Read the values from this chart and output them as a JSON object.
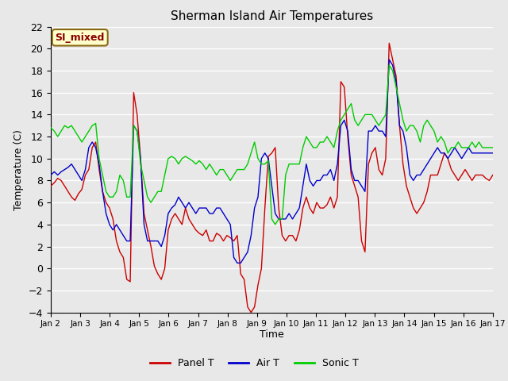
{
  "title": "Sherman Island Air Temperatures",
  "xlabel": "Time",
  "ylabel": "Temperature (C)",
  "ylim": [
    -4,
    22
  ],
  "yticks": [
    -4,
    -2,
    0,
    2,
    4,
    6,
    8,
    10,
    12,
    14,
    16,
    18,
    20,
    22
  ],
  "x_tick_labels": [
    "Jan 2",
    "Jan 3",
    "Jan 4",
    "Jan 5",
    "Jan 6",
    "Jan 7",
    "Jan 8",
    "Jan 9",
    "Jan 10",
    "Jan 11",
    "Jan 12",
    "Jan 13",
    "Jan 14",
    "Jan 15",
    "Jan 16",
    "Jan 17"
  ],
  "watermark_text": "SI_mixed",
  "line_colors": {
    "panel": "#cc0000",
    "air": "#0000cc",
    "sonic": "#00cc00"
  },
  "legend_labels": [
    "Panel T",
    "Air T",
    "Sonic T"
  ],
  "bg_color": "#e8e8e8",
  "panel_t": [
    7.5,
    7.8,
    8.2,
    8.0,
    7.5,
    7.0,
    6.5,
    6.2,
    6.8,
    7.2,
    8.5,
    9.0,
    11.0,
    11.5,
    9.0,
    7.0,
    6.0,
    5.5,
    4.5,
    2.5,
    1.5,
    1.0,
    -1.0,
    -1.2,
    16.0,
    14.0,
    10.0,
    5.0,
    3.5,
    2.0,
    0.2,
    -0.5,
    -1.0,
    0.0,
    3.5,
    4.5,
    5.0,
    4.5,
    4.0,
    5.5,
    4.5,
    4.0,
    3.5,
    3.2,
    3.0,
    3.5,
    2.5,
    2.5,
    3.2,
    3.0,
    2.5,
    3.0,
    2.8,
    2.5,
    3.0,
    -0.5,
    -1.0,
    -3.5,
    -4.0,
    -3.5,
    -1.5,
    0.0,
    5.5,
    10.2,
    10.5,
    11.0,
    5.5,
    3.0,
    2.5,
    3.0,
    3.0,
    2.5,
    3.5,
    5.5,
    6.5,
    5.5,
    5.0,
    6.0,
    5.5,
    5.5,
    5.8,
    6.5,
    5.5,
    6.5,
    17.0,
    16.5,
    12.0,
    8.5,
    7.5,
    6.5,
    2.5,
    1.5,
    9.5,
    10.5,
    11.0,
    9.0,
    8.5,
    10.0,
    20.5,
    19.0,
    17.5,
    13.0,
    9.5,
    7.5,
    6.5,
    5.5,
    5.0,
    5.5,
    6.0,
    7.0,
    8.5,
    8.5,
    8.5,
    9.5,
    10.5,
    10.0,
    9.0,
    8.5,
    8.0,
    8.5,
    9.0,
    8.5,
    8.0,
    8.5,
    8.5,
    8.5,
    8.2,
    8.0,
    8.5
  ],
  "air_t": [
    8.5,
    8.8,
    8.5,
    8.8,
    9.0,
    9.2,
    9.5,
    9.0,
    8.5,
    8.0,
    9.0,
    11.0,
    11.5,
    11.0,
    9.5,
    7.0,
    5.0,
    4.0,
    3.5,
    4.0,
    3.5,
    3.0,
    2.5,
    2.5,
    13.0,
    12.5,
    10.0,
    4.0,
    2.5,
    2.5,
    2.5,
    2.5,
    2.0,
    3.0,
    5.0,
    5.5,
    5.8,
    6.5,
    6.0,
    5.5,
    6.0,
    5.5,
    5.0,
    5.5,
    5.5,
    5.5,
    5.0,
    5.0,
    5.5,
    5.5,
    5.0,
    4.5,
    4.0,
    1.0,
    0.5,
    0.5,
    1.0,
    1.5,
    3.0,
    5.5,
    6.5,
    10.0,
    10.5,
    10.0,
    7.5,
    5.0,
    4.5,
    4.5,
    4.5,
    5.0,
    4.5,
    5.0,
    5.5,
    7.5,
    9.5,
    8.0,
    7.5,
    8.0,
    8.0,
    8.5,
    8.5,
    9.0,
    8.0,
    9.5,
    13.0,
    13.5,
    12.5,
    9.0,
    8.0,
    8.0,
    7.5,
    7.0,
    12.5,
    12.5,
    13.0,
    12.5,
    12.5,
    12.0,
    19.0,
    18.5,
    17.0,
    13.0,
    12.5,
    11.0,
    8.5,
    8.0,
    8.5,
    8.5,
    9.0,
    9.5,
    10.0,
    10.5,
    11.0,
    10.5,
    10.5,
    10.0,
    10.5,
    11.0,
    10.5,
    10.0,
    10.5,
    11.0,
    10.5,
    10.5,
    10.5,
    10.5,
    10.5,
    10.5,
    10.5
  ],
  "sonic_t": [
    12.8,
    12.5,
    12.0,
    12.5,
    13.0,
    12.8,
    13.0,
    12.5,
    12.0,
    11.5,
    12.0,
    12.5,
    13.0,
    13.2,
    10.0,
    8.5,
    7.0,
    6.5,
    6.5,
    7.0,
    8.5,
    8.0,
    6.5,
    6.5,
    13.0,
    12.5,
    9.5,
    8.0,
    6.5,
    6.0,
    6.5,
    7.0,
    7.0,
    8.5,
    10.0,
    10.2,
    10.0,
    9.5,
    10.0,
    10.2,
    10.0,
    9.8,
    9.5,
    9.8,
    9.5,
    9.0,
    9.5,
    9.0,
    8.5,
    9.0,
    9.0,
    8.5,
    8.0,
    8.5,
    9.0,
    9.0,
    9.0,
    9.5,
    10.5,
    11.5,
    10.0,
    9.5,
    9.5,
    9.8,
    4.5,
    4.0,
    4.5,
    4.5,
    8.5,
    9.5,
    9.5,
    9.5,
    9.5,
    11.0,
    12.0,
    11.5,
    11.0,
    11.0,
    11.5,
    11.5,
    12.0,
    11.5,
    11.0,
    12.5,
    13.5,
    14.0,
    14.5,
    15.0,
    13.5,
    13.0,
    13.5,
    14.0,
    14.0,
    14.0,
    13.5,
    13.0,
    13.5,
    14.0,
    18.5,
    18.0,
    16.5,
    15.0,
    13.5,
    12.5,
    13.0,
    13.0,
    12.5,
    11.5,
    13.0,
    13.5,
    13.0,
    12.5,
    11.5,
    12.0,
    11.5,
    10.5,
    11.0,
    11.0,
    11.5,
    11.0,
    11.0,
    11.0,
    11.5,
    11.0,
    11.5,
    11.0,
    11.0,
    11.0,
    11.0
  ]
}
